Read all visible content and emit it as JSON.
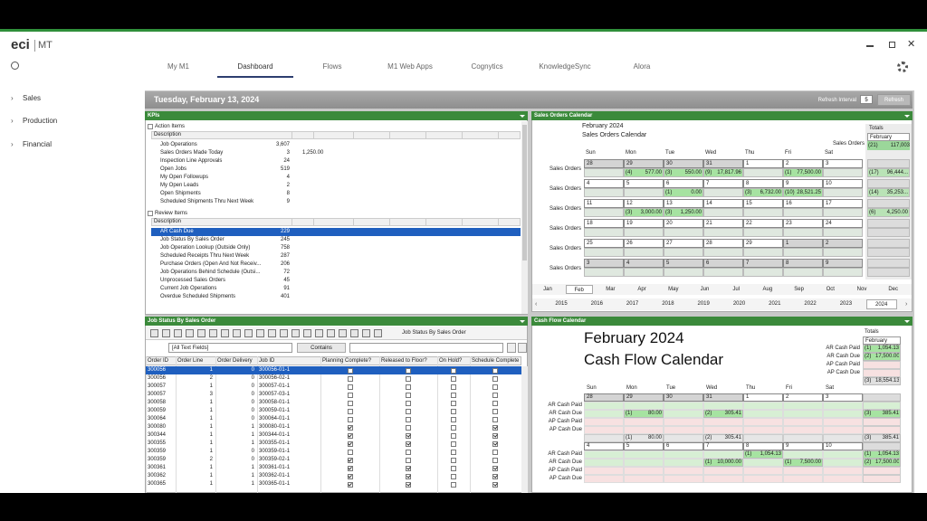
{
  "header": {
    "logo": "eci",
    "product": "MT",
    "tabs": [
      "My M1",
      "Dashboard",
      "Flows",
      "M1 Web Apps",
      "Cognytics",
      "KnowledgeSync",
      "Alora"
    ],
    "active_tab": 1
  },
  "sidebar": [
    "Sales",
    "Production",
    "Financial"
  ],
  "date_bar": {
    "date": "Tuesday, February 13, 2024",
    "refresh_label": "Refresh Interval",
    "interval": "5",
    "refresh_button": "Refresh"
  },
  "kpis": {
    "title": "KPIs",
    "column": "Description",
    "action_section": "Action Items",
    "action_rows": [
      {
        "label": "Job Operations",
        "value": "3,607"
      },
      {
        "label": "Sales Orders Made Today",
        "value": "3",
        "extra": "1,250.00"
      },
      {
        "label": "Inspection Line Approvals",
        "value": "24"
      },
      {
        "label": "Open Jobs",
        "value": "519"
      },
      {
        "label": "My Open Followups",
        "value": "4"
      },
      {
        "label": "My Open Leads",
        "value": "2"
      },
      {
        "label": "Open Shipments",
        "value": "8"
      },
      {
        "label": "Scheduled Shipments Thru Next Week",
        "value": "9"
      }
    ],
    "review_section": "Review Items",
    "review_rows": [
      {
        "label": "AR Cash Due",
        "value": "229"
      },
      {
        "label": "Job Status By Sales Order",
        "value": "245"
      },
      {
        "label": "Job Operation Lookup (Outside Only)",
        "value": "758"
      },
      {
        "label": "Scheduled Receipts Thru Next Week",
        "value": "287"
      },
      {
        "label": "Purchase Orders (Open And Not Receiv...",
        "value": "206"
      },
      {
        "label": "Job Operations Behind Schedule (Outsi...",
        "value": "72"
      },
      {
        "label": "Unprocessed Sales Orders",
        "value": "45"
      },
      {
        "label": "Current Job Operations",
        "value": "91"
      },
      {
        "label": "Overdue Scheduled Shipments",
        "value": "401"
      }
    ]
  },
  "calendar_days": [
    "Sun",
    "Mon",
    "Tue",
    "Wed",
    "Thu",
    "Fri",
    "Sat"
  ],
  "sales_calendar": {
    "title": "Sales Orders Calendar",
    "month": "February 2024",
    "subtitle": "Sales Orders Calendar",
    "totals_label": "Totals",
    "totals_month": "February",
    "row_label": "Sales Orders",
    "grand_total": {
      "count": "(21)",
      "amount": "117,003"
    },
    "weeks": [
      {
        "dates": [
          "28",
          "29",
          "30",
          "31",
          "1",
          "2",
          "3"
        ],
        "cells": [
          null,
          {
            "count": "(4)",
            "amount": "577.00"
          },
          {
            "count": "(3)",
            "amount": "550.00"
          },
          {
            "count": "(9)",
            "amount": "17,817.96"
          },
          null,
          {
            "count": "(1)",
            "amount": "77,500.00"
          },
          null
        ],
        "total": {
          "count": "(17)",
          "amount": "96,444..."
        }
      },
      {
        "dates": [
          "4",
          "5",
          "6",
          "7",
          "8",
          "9",
          "10"
        ],
        "cells": [
          null,
          null,
          {
            "count": "(1)",
            "amount": "0.00"
          },
          null,
          {
            "count": "(3)",
            "amount": "6,732.00"
          },
          {
            "count": "(10)",
            "amount": "28,521.25"
          },
          null
        ],
        "total": {
          "count": "(14)",
          "amount": "35,253..."
        }
      },
      {
        "dates": [
          "11",
          "12",
          "13",
          "14",
          "15",
          "16",
          "17"
        ],
        "cells": [
          null,
          {
            "count": "(3)",
            "amount": "3,000.00"
          },
          {
            "count": "(3)",
            "amount": "1,250.00"
          },
          null,
          null,
          null,
          null
        ],
        "total": {
          "count": "(6)",
          "amount": "4,250.00"
        }
      },
      {
        "dates": [
          "18",
          "19",
          "20",
          "21",
          "22",
          "23",
          "24"
        ],
        "cells": [
          null,
          null,
          null,
          null,
          null,
          null,
          null
        ],
        "total": null
      },
      {
        "dates": [
          "25",
          "26",
          "27",
          "28",
          "29",
          "1",
          "2"
        ],
        "cells": [
          null,
          null,
          null,
          null,
          null,
          null,
          null
        ],
        "total": null
      },
      {
        "dates": [
          "3",
          "4",
          "5",
          "6",
          "7",
          "8",
          "9"
        ],
        "cells": [
          null,
          null,
          null,
          null,
          null,
          null,
          null
        ],
        "total": null
      }
    ],
    "months": [
      "Jan",
      "Feb",
      "Mar",
      "Apr",
      "May",
      "Jun",
      "Jul",
      "Aug",
      "Sep",
      "Oct",
      "Nov",
      "Dec"
    ],
    "selected_month": 1,
    "years": [
      "2015",
      "2016",
      "2017",
      "2018",
      "2019",
      "2020",
      "2021",
      "2022",
      "2023",
      "2024"
    ],
    "selected_year": 9
  },
  "job_status": {
    "title": "Job Status By Sales Order",
    "toolbar_label": "Job Status By Sales Order",
    "filter_field": "[All Text Fields]",
    "filter_op": "Contains",
    "columns": [
      "Order ID",
      "Order Line",
      "Order Delivery",
      "Job ID",
      "Planning Complete?",
      "Released to Floor?",
      "On Hold?",
      "Schedule Complete"
    ],
    "rows": [
      {
        "cells": [
          "300056",
          "1",
          "0",
          "300056-01-1"
        ],
        "checks": [
          false,
          false,
          false,
          false
        ]
      },
      {
        "cells": [
          "300056",
          "2",
          "0",
          "300056-02-1"
        ],
        "checks": [
          false,
          false,
          false,
          false
        ]
      },
      {
        "cells": [
          "300057",
          "1",
          "0",
          "300057-01-1"
        ],
        "checks": [
          false,
          false,
          false,
          false
        ]
      },
      {
        "cells": [
          "300057",
          "3",
          "0",
          "300057-03-1"
        ],
        "checks": [
          false,
          false,
          false,
          false
        ]
      },
      {
        "cells": [
          "300058",
          "1",
          "0",
          "300058-01-1"
        ],
        "checks": [
          false,
          false,
          false,
          false
        ]
      },
      {
        "cells": [
          "300059",
          "1",
          "0",
          "300059-01-1"
        ],
        "checks": [
          false,
          false,
          false,
          false
        ]
      },
      {
        "cells": [
          "300064",
          "1",
          "0",
          "300064-01-1"
        ],
        "checks": [
          false,
          false,
          false,
          false
        ]
      },
      {
        "cells": [
          "300080",
          "1",
          "1",
          "300080-01-1"
        ],
        "checks": [
          true,
          false,
          false,
          true
        ]
      },
      {
        "cells": [
          "300344",
          "1",
          "1",
          "300344-01-1"
        ],
        "checks": [
          true,
          true,
          false,
          true
        ]
      },
      {
        "cells": [
          "300355",
          "1",
          "1",
          "300355-01-1"
        ],
        "checks": [
          true,
          true,
          false,
          true
        ]
      },
      {
        "cells": [
          "300359",
          "1",
          "0",
          "300359-01-1"
        ],
        "checks": [
          false,
          false,
          false,
          false
        ]
      },
      {
        "cells": [
          "300359",
          "2",
          "0",
          "300359-02-1"
        ],
        "checks": [
          true,
          false,
          false,
          false
        ]
      },
      {
        "cells": [
          "300361",
          "1",
          "1",
          "300361-01-1"
        ],
        "checks": [
          true,
          true,
          false,
          true
        ]
      },
      {
        "cells": [
          "300362",
          "1",
          "1",
          "300362-01-1"
        ],
        "checks": [
          true,
          true,
          false,
          true
        ]
      },
      {
        "cells": [
          "300365",
          "1",
          "1",
          "300365-01-1"
        ],
        "checks": [
          true,
          true,
          false,
          true
        ]
      }
    ]
  },
  "cash_flow": {
    "panel_title": "Cash Flow Calendar",
    "month": "February 2024",
    "title": "Cash Flow Calendar",
    "totals_label": "Totals",
    "totals_month": "February",
    "row_labels": [
      "AR Cash Paid",
      "AR Cash Due",
      "AP Cash Paid",
      "AP Cash Due"
    ],
    "totals": [
      {
        "count": "(1)",
        "amount": "1,054.13"
      },
      {
        "count": "(2)",
        "amount": "17,500.00"
      },
      null,
      null
    ],
    "grand_total": {
      "count": "(3)",
      "amount": "18,554.13"
    },
    "weeks": [
      {
        "dates": [
          "28",
          "29",
          "30",
          "31",
          "1",
          "2",
          "3"
        ],
        "rows": [
          [
            null,
            null,
            null,
            null,
            null,
            null,
            null
          ],
          [
            null,
            {
              "count": "(1)",
              "amount": "80.00"
            },
            null,
            {
              "count": "(2)",
              "amount": "305.41"
            },
            null,
            null,
            null
          ],
          [
            null,
            null,
            null,
            null,
            null,
            null,
            null
          ],
          [
            null,
            null,
            null,
            null,
            null,
            null,
            null
          ]
        ],
        "row_totals": [
          null,
          {
            "count": "(3)",
            "amount": "385.41"
          },
          null,
          null
        ],
        "footer": [
          null,
          {
            "count": "(1)",
            "amount": "80.00"
          },
          null,
          {
            "count": "(2)",
            "amount": "305.41"
          },
          null,
          null,
          null
        ],
        "footer_total": {
          "count": "(3)",
          "amount": "385.41"
        }
      },
      {
        "dates": [
          "4",
          "5",
          "6",
          "7",
          "8",
          "9",
          "10"
        ],
        "rows": [
          [
            null,
            null,
            null,
            null,
            {
              "count": "(1)",
              "amount": "1,054.13"
            },
            null,
            null
          ],
          [
            null,
            null,
            null,
            {
              "count": "(1)",
              "amount": "10,000.00"
            },
            null,
            {
              "count": "(1)",
              "amount": "7,500.00"
            },
            null
          ],
          [
            null,
            null,
            null,
            null,
            null,
            null,
            null
          ],
          [
            null,
            null,
            null,
            null,
            null,
            null,
            null
          ]
        ],
        "row_totals": [
          {
            "count": "(1)",
            "amount": "1,054.13"
          },
          {
            "count": "(2)",
            "amount": "17,500.00"
          },
          null,
          null
        ]
      }
    ]
  }
}
